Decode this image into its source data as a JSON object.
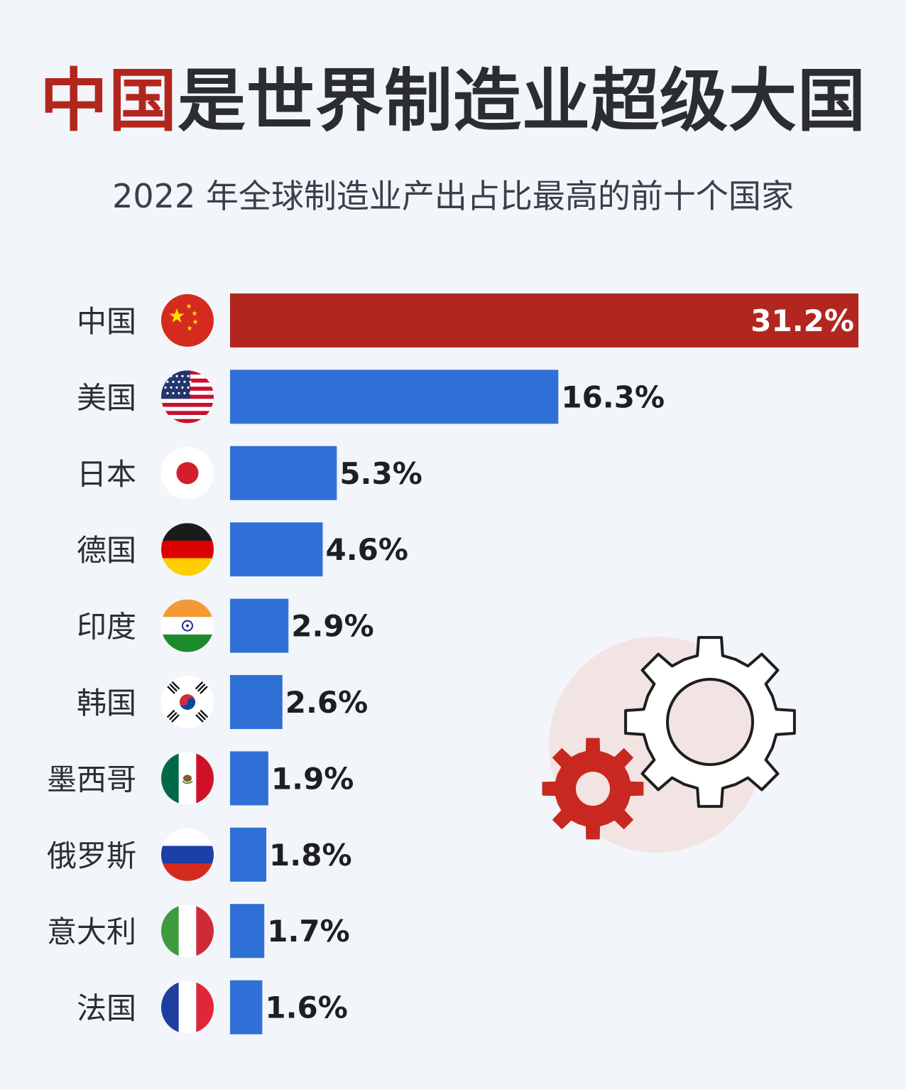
{
  "title_highlight": "中国",
  "title_rest": "是世界制造业超级大国",
  "subtitle": "2022 年全球制造业产出占比最高的前十个国家",
  "colors": {
    "highlight_bar": "#b1271f",
    "bar": "#2f70d6",
    "title_red": "#b3261e",
    "text": "#2b2d33"
  },
  "chart_data": {
    "type": "bar",
    "orientation": "horizontal",
    "unit": "%",
    "categories": [
      "中国",
      "美国",
      "日本",
      "德国",
      "印度",
      "韩国",
      "墨西哥",
      "俄罗斯",
      "意大利",
      "法国"
    ],
    "values": [
      31.2,
      16.3,
      5.3,
      4.6,
      2.9,
      2.6,
      1.9,
      1.8,
      1.7,
      1.6
    ],
    "value_labels": [
      "31.2%",
      "16.3%",
      "5.3%",
      "4.6%",
      "2.9%",
      "2.6%",
      "1.9%",
      "1.8%",
      "1.7%",
      "1.6%"
    ],
    "flags": [
      "china-flag-icon",
      "usa-flag-icon",
      "japan-flag-icon",
      "germany-flag-icon",
      "india-flag-icon",
      "korea-flag-icon",
      "mexico-flag-icon",
      "russia-flag-icon",
      "italy-flag-icon",
      "france-flag-icon"
    ],
    "highlight_index": 0,
    "xlim": [
      0,
      31.2
    ],
    "grid": false,
    "legend": "none"
  }
}
